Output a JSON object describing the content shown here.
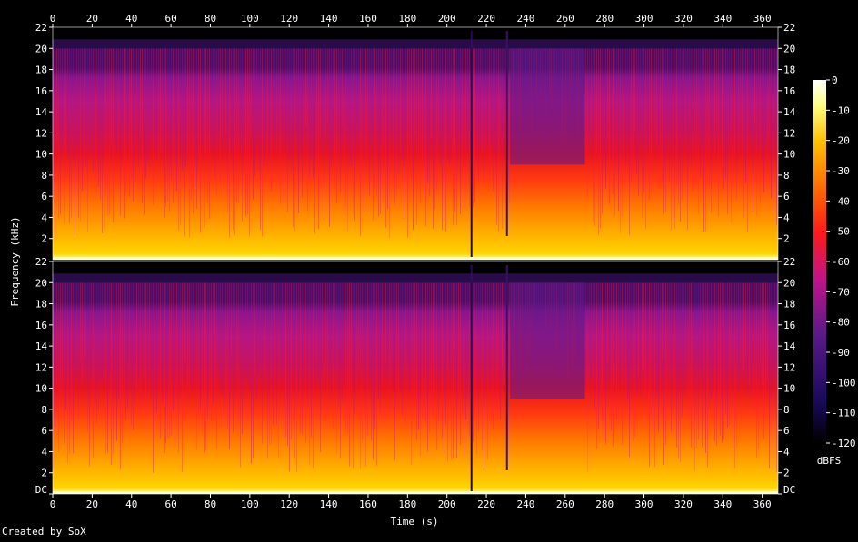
{
  "chart_data": {
    "type": "heatmap",
    "title": "",
    "xlabel": "Time (s)",
    "ylabel": "Frequency (kHz)",
    "x_ticks": [
      "0",
      "20",
      "40",
      "60",
      "80",
      "100",
      "120",
      "140",
      "160",
      "180",
      "200",
      "220",
      "240",
      "260",
      "280",
      "300",
      "320",
      "340",
      "360"
    ],
    "xlim": [
      0,
      368
    ],
    "channels": [
      {
        "ylim": [
          0,
          22
        ],
        "y_ticks": [
          "2",
          "4",
          "6",
          "8",
          "10",
          "12",
          "14",
          "16",
          "18",
          "20",
          "22"
        ]
      },
      {
        "ylim": [
          0,
          22
        ],
        "y_ticks": [
          "DC",
          "2",
          "4",
          "6",
          "8",
          "10",
          "12",
          "14",
          "16",
          "18",
          "20",
          "22"
        ]
      }
    ],
    "colorbar": {
      "label": "dBFS",
      "range": [
        -120,
        0
      ],
      "ticks": [
        "0",
        "-10",
        "-20",
        "-30",
        "-40",
        "-50",
        "-60",
        "-70",
        "-80",
        "-90",
        "-100",
        "-110",
        "-120"
      ]
    },
    "spectral_cutoff_khz": 20,
    "colors": [
      "#000000",
      "#1b0a5e",
      "#5a1a8a",
      "#c0148a",
      "#ff1a1a",
      "#ff6a00",
      "#ffc000",
      "#ffff80",
      "#ffffff"
    ]
  },
  "footer": {
    "credit": "Created by SoX"
  }
}
